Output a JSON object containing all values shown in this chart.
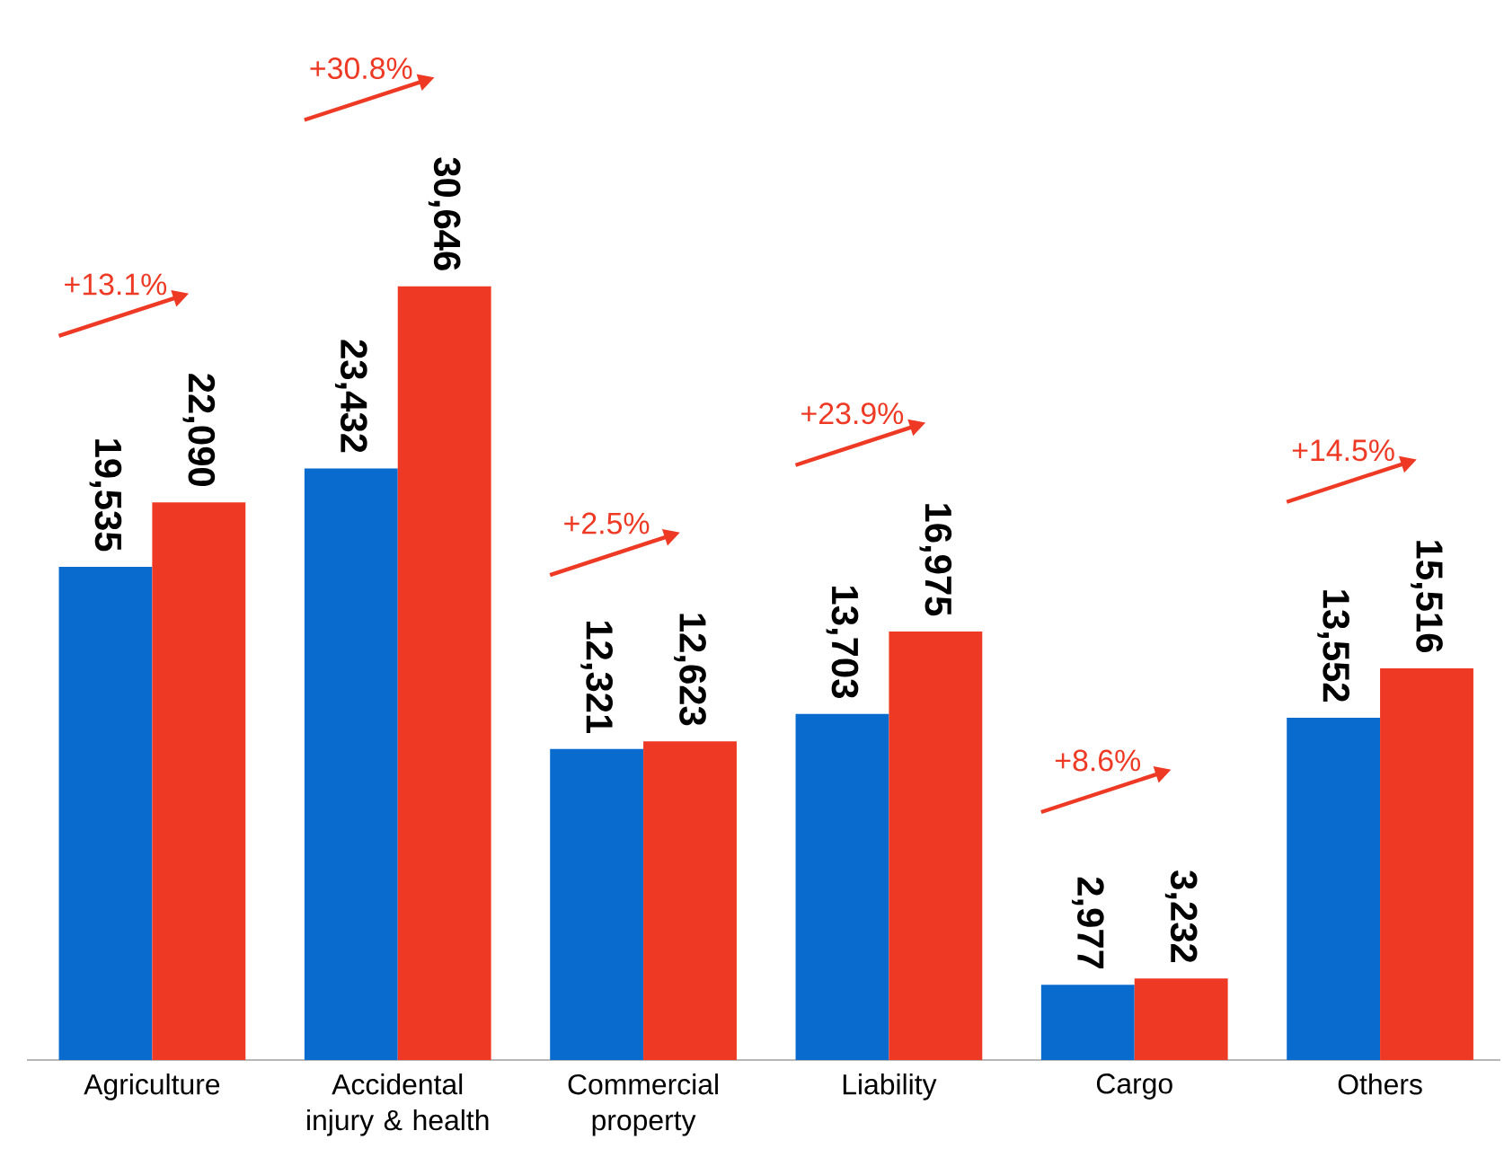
{
  "chart_data": {
    "type": "bar",
    "categories": [
      "Agriculture",
      "Accidental injury & health",
      "Commercial property",
      "Liability",
      "Cargo",
      "Others"
    ],
    "series": [
      {
        "color": "#0a6bcf",
        "values": [
          19535,
          23432,
          12321,
          13703,
          2977,
          13552
        ],
        "value_labels": [
          "19,535",
          "23,432",
          "12,321",
          "13,703",
          "2,977",
          "13,552"
        ]
      },
      {
        "color": "#ee3a24",
        "values": [
          22090,
          30646,
          12623,
          16975,
          3232,
          15516
        ],
        "value_labels": [
          "22,090",
          "30,646",
          "12,623",
          "16,975",
          "3,232",
          "15,516"
        ]
      }
    ],
    "tick_labels": "x",
    "annotations": [
      "+13.1%",
      "+30.8%",
      "+2.5%",
      "+23.9%",
      "+8.6%",
      "+14.5%"
    ]
  }
}
